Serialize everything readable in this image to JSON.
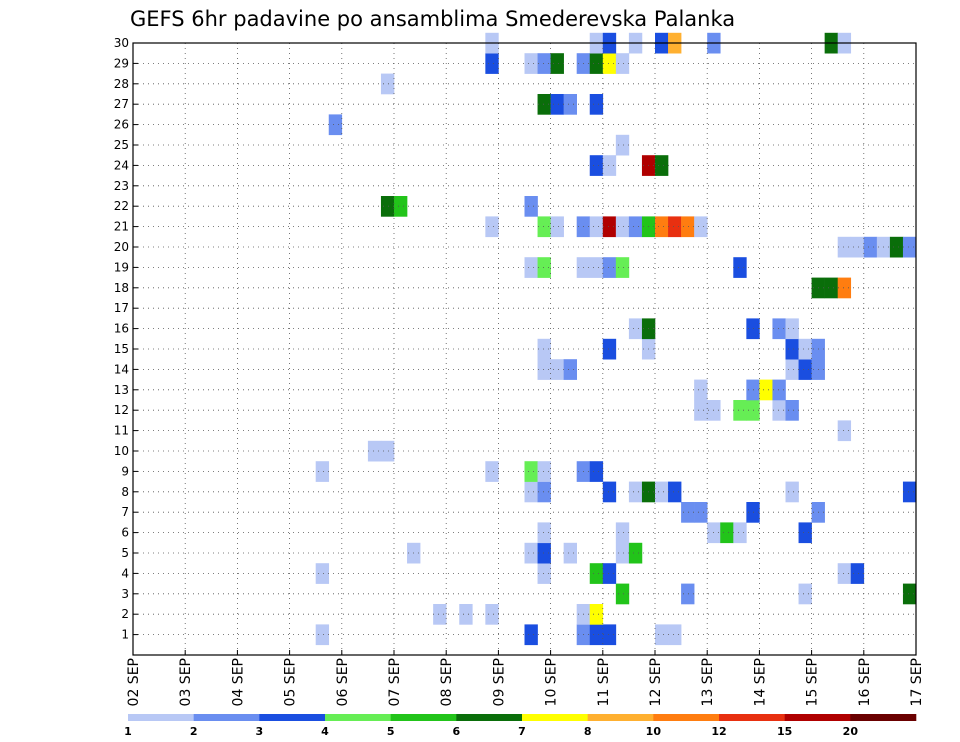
{
  "chart_data": {
    "type": "heatmap",
    "title": "GEFS 6hr padavine po ansamblima Smederevska Palanka",
    "xlabel": "",
    "ylabel": "",
    "x_ticks": [
      "02 SEP",
      "03 SEP",
      "04 SEP",
      "05 SEP",
      "06 SEP",
      "07 SEP",
      "08 SEP",
      "09 SEP",
      "10 SEP",
      "11 SEP",
      "12 SEP",
      "13 SEP",
      "14 SEP",
      "15 SEP",
      "16 SEP",
      "17 SEP"
    ],
    "y_ticks": [
      "1",
      "2",
      "3",
      "4",
      "5",
      "6",
      "7",
      "8",
      "9",
      "10",
      "11",
      "12",
      "13",
      "14",
      "15",
      "16",
      "17",
      "18",
      "19",
      "20",
      "21",
      "22",
      "23",
      "24",
      "25",
      "26",
      "27",
      "28",
      "29",
      "30"
    ],
    "xlim": [
      0,
      60
    ],
    "ylim": [
      0,
      30
    ],
    "x_units": "6-hour steps from 02 SEP",
    "grid": true,
    "colorbar": {
      "labels": [
        "1",
        "2",
        "3",
        "4",
        "5",
        "6",
        "7",
        "8",
        "10",
        "12",
        "15",
        "20"
      ],
      "colors": [
        "#b8c8f5",
        "#6a8ef0",
        "#1a4ee0",
        "#66ee55",
        "#22c41a",
        "#0a6e0a",
        "#ffff00",
        "#ffb030",
        "#ff7d10",
        "#e83010",
        "#b00000",
        "#6a0000"
      ]
    },
    "cells": [
      {
        "x": 14,
        "y": 1,
        "bin": 0
      },
      {
        "x": 30,
        "y": 1,
        "bin": 2
      },
      {
        "x": 34,
        "y": 1,
        "bin": 1
      },
      {
        "x": 35,
        "y": 1,
        "bin": 2
      },
      {
        "x": 36,
        "y": 1,
        "bin": 2
      },
      {
        "x": 40,
        "y": 1,
        "bin": 0
      },
      {
        "x": 41,
        "y": 1,
        "bin": 0
      },
      {
        "x": 23,
        "y": 2,
        "bin": 0
      },
      {
        "x": 25,
        "y": 2,
        "bin": 0
      },
      {
        "x": 27,
        "y": 2,
        "bin": 0
      },
      {
        "x": 34,
        "y": 2,
        "bin": 0
      },
      {
        "x": 35,
        "y": 2,
        "bin": 6
      },
      {
        "x": 37,
        "y": 3,
        "bin": 4
      },
      {
        "x": 42,
        "y": 3,
        "bin": 1
      },
      {
        "x": 51,
        "y": 3,
        "bin": 0
      },
      {
        "x": 59,
        "y": 3,
        "bin": 5
      },
      {
        "x": 14,
        "y": 4,
        "bin": 0
      },
      {
        "x": 31,
        "y": 4,
        "bin": 0
      },
      {
        "x": 35,
        "y": 4,
        "bin": 4
      },
      {
        "x": 36,
        "y": 4,
        "bin": 2
      },
      {
        "x": 54,
        "y": 4,
        "bin": 0
      },
      {
        "x": 55,
        "y": 4,
        "bin": 2
      },
      {
        "x": 21,
        "y": 5,
        "bin": 0
      },
      {
        "x": 30,
        "y": 5,
        "bin": 0
      },
      {
        "x": 31,
        "y": 5,
        "bin": 2
      },
      {
        "x": 33,
        "y": 5,
        "bin": 0
      },
      {
        "x": 37,
        "y": 5,
        "bin": 0
      },
      {
        "x": 38,
        "y": 5,
        "bin": 4
      },
      {
        "x": 31,
        "y": 6,
        "bin": 0
      },
      {
        "x": 37,
        "y": 6,
        "bin": 0
      },
      {
        "x": 44,
        "y": 6,
        "bin": 0
      },
      {
        "x": 45,
        "y": 6,
        "bin": 4
      },
      {
        "x": 46,
        "y": 6,
        "bin": 0
      },
      {
        "x": 51,
        "y": 6,
        "bin": 2
      },
      {
        "x": 42,
        "y": 7,
        "bin": 1
      },
      {
        "x": 43,
        "y": 7,
        "bin": 1
      },
      {
        "x": 47,
        "y": 7,
        "bin": 2
      },
      {
        "x": 52,
        "y": 7,
        "bin": 1
      },
      {
        "x": 30,
        "y": 8,
        "bin": 0
      },
      {
        "x": 31,
        "y": 8,
        "bin": 1
      },
      {
        "x": 36,
        "y": 8,
        "bin": 2
      },
      {
        "x": 38,
        "y": 8,
        "bin": 0
      },
      {
        "x": 39,
        "y": 8,
        "bin": 5
      },
      {
        "x": 40,
        "y": 8,
        "bin": 0
      },
      {
        "x": 41,
        "y": 8,
        "bin": 2
      },
      {
        "x": 50,
        "y": 8,
        "bin": 0
      },
      {
        "x": 59,
        "y": 8,
        "bin": 2
      },
      {
        "x": 14,
        "y": 9,
        "bin": 0
      },
      {
        "x": 27,
        "y": 9,
        "bin": 0
      },
      {
        "x": 30,
        "y": 9,
        "bin": 3
      },
      {
        "x": 31,
        "y": 9,
        "bin": 0
      },
      {
        "x": 34,
        "y": 9,
        "bin": 1
      },
      {
        "x": 35,
        "y": 9,
        "bin": 2
      },
      {
        "x": 18,
        "y": 10,
        "bin": 0
      },
      {
        "x": 19,
        "y": 10,
        "bin": 0
      },
      {
        "x": 54,
        "y": 11,
        "bin": 0
      },
      {
        "x": 43,
        "y": 12,
        "bin": 0
      },
      {
        "x": 44,
        "y": 12,
        "bin": 0
      },
      {
        "x": 46,
        "y": 12,
        "bin": 3
      },
      {
        "x": 47,
        "y": 12,
        "bin": 3
      },
      {
        "x": 49,
        "y": 12,
        "bin": 0
      },
      {
        "x": 50,
        "y": 12,
        "bin": 1
      },
      {
        "x": 43,
        "y": 13,
        "bin": 0
      },
      {
        "x": 47,
        "y": 13,
        "bin": 1
      },
      {
        "x": 48,
        "y": 13,
        "bin": 6
      },
      {
        "x": 49,
        "y": 13,
        "bin": 1
      },
      {
        "x": 31,
        "y": 14,
        "bin": 0
      },
      {
        "x": 32,
        "y": 14,
        "bin": 0
      },
      {
        "x": 33,
        "y": 14,
        "bin": 1
      },
      {
        "x": 50,
        "y": 14,
        "bin": 0
      },
      {
        "x": 51,
        "y": 14,
        "bin": 2
      },
      {
        "x": 52,
        "y": 14,
        "bin": 1
      },
      {
        "x": 31,
        "y": 15,
        "bin": 0
      },
      {
        "x": 36,
        "y": 15,
        "bin": 2
      },
      {
        "x": 39,
        "y": 15,
        "bin": 0
      },
      {
        "x": 50,
        "y": 15,
        "bin": 2
      },
      {
        "x": 51,
        "y": 15,
        "bin": 0
      },
      {
        "x": 52,
        "y": 15,
        "bin": 1
      },
      {
        "x": 38,
        "y": 16,
        "bin": 0
      },
      {
        "x": 39,
        "y": 16,
        "bin": 5
      },
      {
        "x": 47,
        "y": 16,
        "bin": 2
      },
      {
        "x": 49,
        "y": 16,
        "bin": 1
      },
      {
        "x": 50,
        "y": 16,
        "bin": 0
      },
      {
        "x": 52,
        "y": 18,
        "bin": 5
      },
      {
        "x": 53,
        "y": 18,
        "bin": 5
      },
      {
        "x": 54,
        "y": 18,
        "bin": 8
      },
      {
        "x": 30,
        "y": 19,
        "bin": 0
      },
      {
        "x": 31,
        "y": 19,
        "bin": 3
      },
      {
        "x": 34,
        "y": 19,
        "bin": 0
      },
      {
        "x": 35,
        "y": 19,
        "bin": 0
      },
      {
        "x": 36,
        "y": 19,
        "bin": 1
      },
      {
        "x": 37,
        "y": 19,
        "bin": 3
      },
      {
        "x": 46,
        "y": 19,
        "bin": 2
      },
      {
        "x": 54,
        "y": 20,
        "bin": 0
      },
      {
        "x": 55,
        "y": 20,
        "bin": 0
      },
      {
        "x": 56,
        "y": 20,
        "bin": 1
      },
      {
        "x": 57,
        "y": 20,
        "bin": 0
      },
      {
        "x": 58,
        "y": 20,
        "bin": 5
      },
      {
        "x": 59,
        "y": 20,
        "bin": 1
      },
      {
        "x": 27,
        "y": 21,
        "bin": 0
      },
      {
        "x": 31,
        "y": 21,
        "bin": 3
      },
      {
        "x": 32,
        "y": 21,
        "bin": 0
      },
      {
        "x": 34,
        "y": 21,
        "bin": 1
      },
      {
        "x": 35,
        "y": 21,
        "bin": 0
      },
      {
        "x": 36,
        "y": 21,
        "bin": 10
      },
      {
        "x": 37,
        "y": 21,
        "bin": 0
      },
      {
        "x": 38,
        "y": 21,
        "bin": 1
      },
      {
        "x": 39,
        "y": 21,
        "bin": 4
      },
      {
        "x": 40,
        "y": 21,
        "bin": 8
      },
      {
        "x": 41,
        "y": 21,
        "bin": 9
      },
      {
        "x": 42,
        "y": 21,
        "bin": 8
      },
      {
        "x": 43,
        "y": 21,
        "bin": 0
      },
      {
        "x": 19,
        "y": 22,
        "bin": 5
      },
      {
        "x": 20,
        "y": 22,
        "bin": 4
      },
      {
        "x": 30,
        "y": 22,
        "bin": 1
      },
      {
        "x": 35,
        "y": 24,
        "bin": 2
      },
      {
        "x": 36,
        "y": 24,
        "bin": 0
      },
      {
        "x": 39,
        "y": 24,
        "bin": 10
      },
      {
        "x": 40,
        "y": 24,
        "bin": 5
      },
      {
        "x": 37,
        "y": 25,
        "bin": 0
      },
      {
        "x": 15,
        "y": 26,
        "bin": 1
      },
      {
        "x": 31,
        "y": 27,
        "bin": 5
      },
      {
        "x": 32,
        "y": 27,
        "bin": 2
      },
      {
        "x": 33,
        "y": 27,
        "bin": 1
      },
      {
        "x": 35,
        "y": 27,
        "bin": 2
      },
      {
        "x": 19,
        "y": 28,
        "bin": 0
      },
      {
        "x": 27,
        "y": 29,
        "bin": 2
      },
      {
        "x": 30,
        "y": 29,
        "bin": 0
      },
      {
        "x": 31,
        "y": 29,
        "bin": 1
      },
      {
        "x": 32,
        "y": 29,
        "bin": 5
      },
      {
        "x": 34,
        "y": 29,
        "bin": 1
      },
      {
        "x": 35,
        "y": 29,
        "bin": 5
      },
      {
        "x": 36,
        "y": 29,
        "bin": 6
      },
      {
        "x": 37,
        "y": 29,
        "bin": 0
      },
      {
        "x": 27,
        "y": 30,
        "bin": 0
      },
      {
        "x": 35,
        "y": 30,
        "bin": 0
      },
      {
        "x": 36,
        "y": 30,
        "bin": 2
      },
      {
        "x": 38,
        "y": 30,
        "bin": 0
      },
      {
        "x": 40,
        "y": 30,
        "bin": 2
      },
      {
        "x": 41,
        "y": 30,
        "bin": 7
      },
      {
        "x": 44,
        "y": 30,
        "bin": 1
      },
      {
        "x": 53,
        "y": 30,
        "bin": 5
      },
      {
        "x": 54,
        "y": 30,
        "bin": 0
      }
    ]
  }
}
